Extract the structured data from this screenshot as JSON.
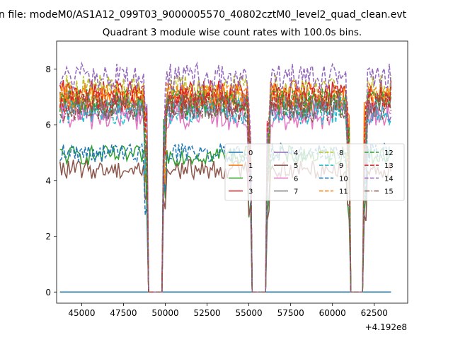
{
  "suptitle": "n file: modeM0/AS1A12_099T03_9000005570_40802cztM0_level2_quad_clean.evt",
  "chart_data": {
    "type": "line",
    "title": "Quadrant 3 module wise count rates with 100.0s bins.",
    "xlabel": "",
    "ylabel": "",
    "x_offset_label": "+4.192e8",
    "xlim": [
      43500,
      64500
    ],
    "ylim": [
      -0.4,
      9.0
    ],
    "x_ticks": [
      45000,
      47500,
      50000,
      52500,
      55000,
      57500,
      60000,
      62500
    ],
    "y_ticks": [
      0,
      2,
      4,
      6,
      8
    ],
    "grid": false,
    "legend": {
      "placement": "center-right",
      "columns": 4
    },
    "time_range": [
      43700,
      63500
    ],
    "gaps": [
      [
        48900,
        49900
      ],
      [
        55100,
        56100
      ],
      [
        61000,
        61900
      ]
    ],
    "series": [
      {
        "name": "0",
        "color": "#1f77b4",
        "style": "solid",
        "level": 0.0
      },
      {
        "name": "1",
        "color": "#ff7f0e",
        "style": "solid",
        "level": 6.9
      },
      {
        "name": "2",
        "color": "#2ca02c",
        "style": "solid",
        "level": 4.9
      },
      {
        "name": "3",
        "color": "#d62728",
        "style": "solid",
        "level": 7.1
      },
      {
        "name": "4",
        "color": "#9467bd",
        "style": "solid",
        "level": 6.6
      },
      {
        "name": "5",
        "color": "#8c564b",
        "style": "solid",
        "level": 4.4
      },
      {
        "name": "6",
        "color": "#e377c2",
        "style": "solid",
        "level": 6.3
      },
      {
        "name": "7",
        "color": "#7f7f7f",
        "style": "solid",
        "level": 6.7
      },
      {
        "name": "8",
        "color": "#bcbd22",
        "style": "dashed",
        "level": 7.3
      },
      {
        "name": "9",
        "color": "#17becf",
        "style": "dashed",
        "level": 6.5
      },
      {
        "name": "10",
        "color": "#1f77b4",
        "style": "dashed",
        "level": 5.0
      },
      {
        "name": "11",
        "color": "#ff7f0e",
        "style": "dashed",
        "level": 7.0
      },
      {
        "name": "12",
        "color": "#2ca02c",
        "style": "dashed",
        "level": 6.8
      },
      {
        "name": "13",
        "color": "#d62728",
        "style": "dashed",
        "level": 6.9
      },
      {
        "name": "14",
        "color": "#9467bd",
        "style": "dashed",
        "level": 7.7
      },
      {
        "name": "15",
        "color": "#8c564b",
        "style": "dashdot",
        "level": 6.6
      }
    ]
  }
}
